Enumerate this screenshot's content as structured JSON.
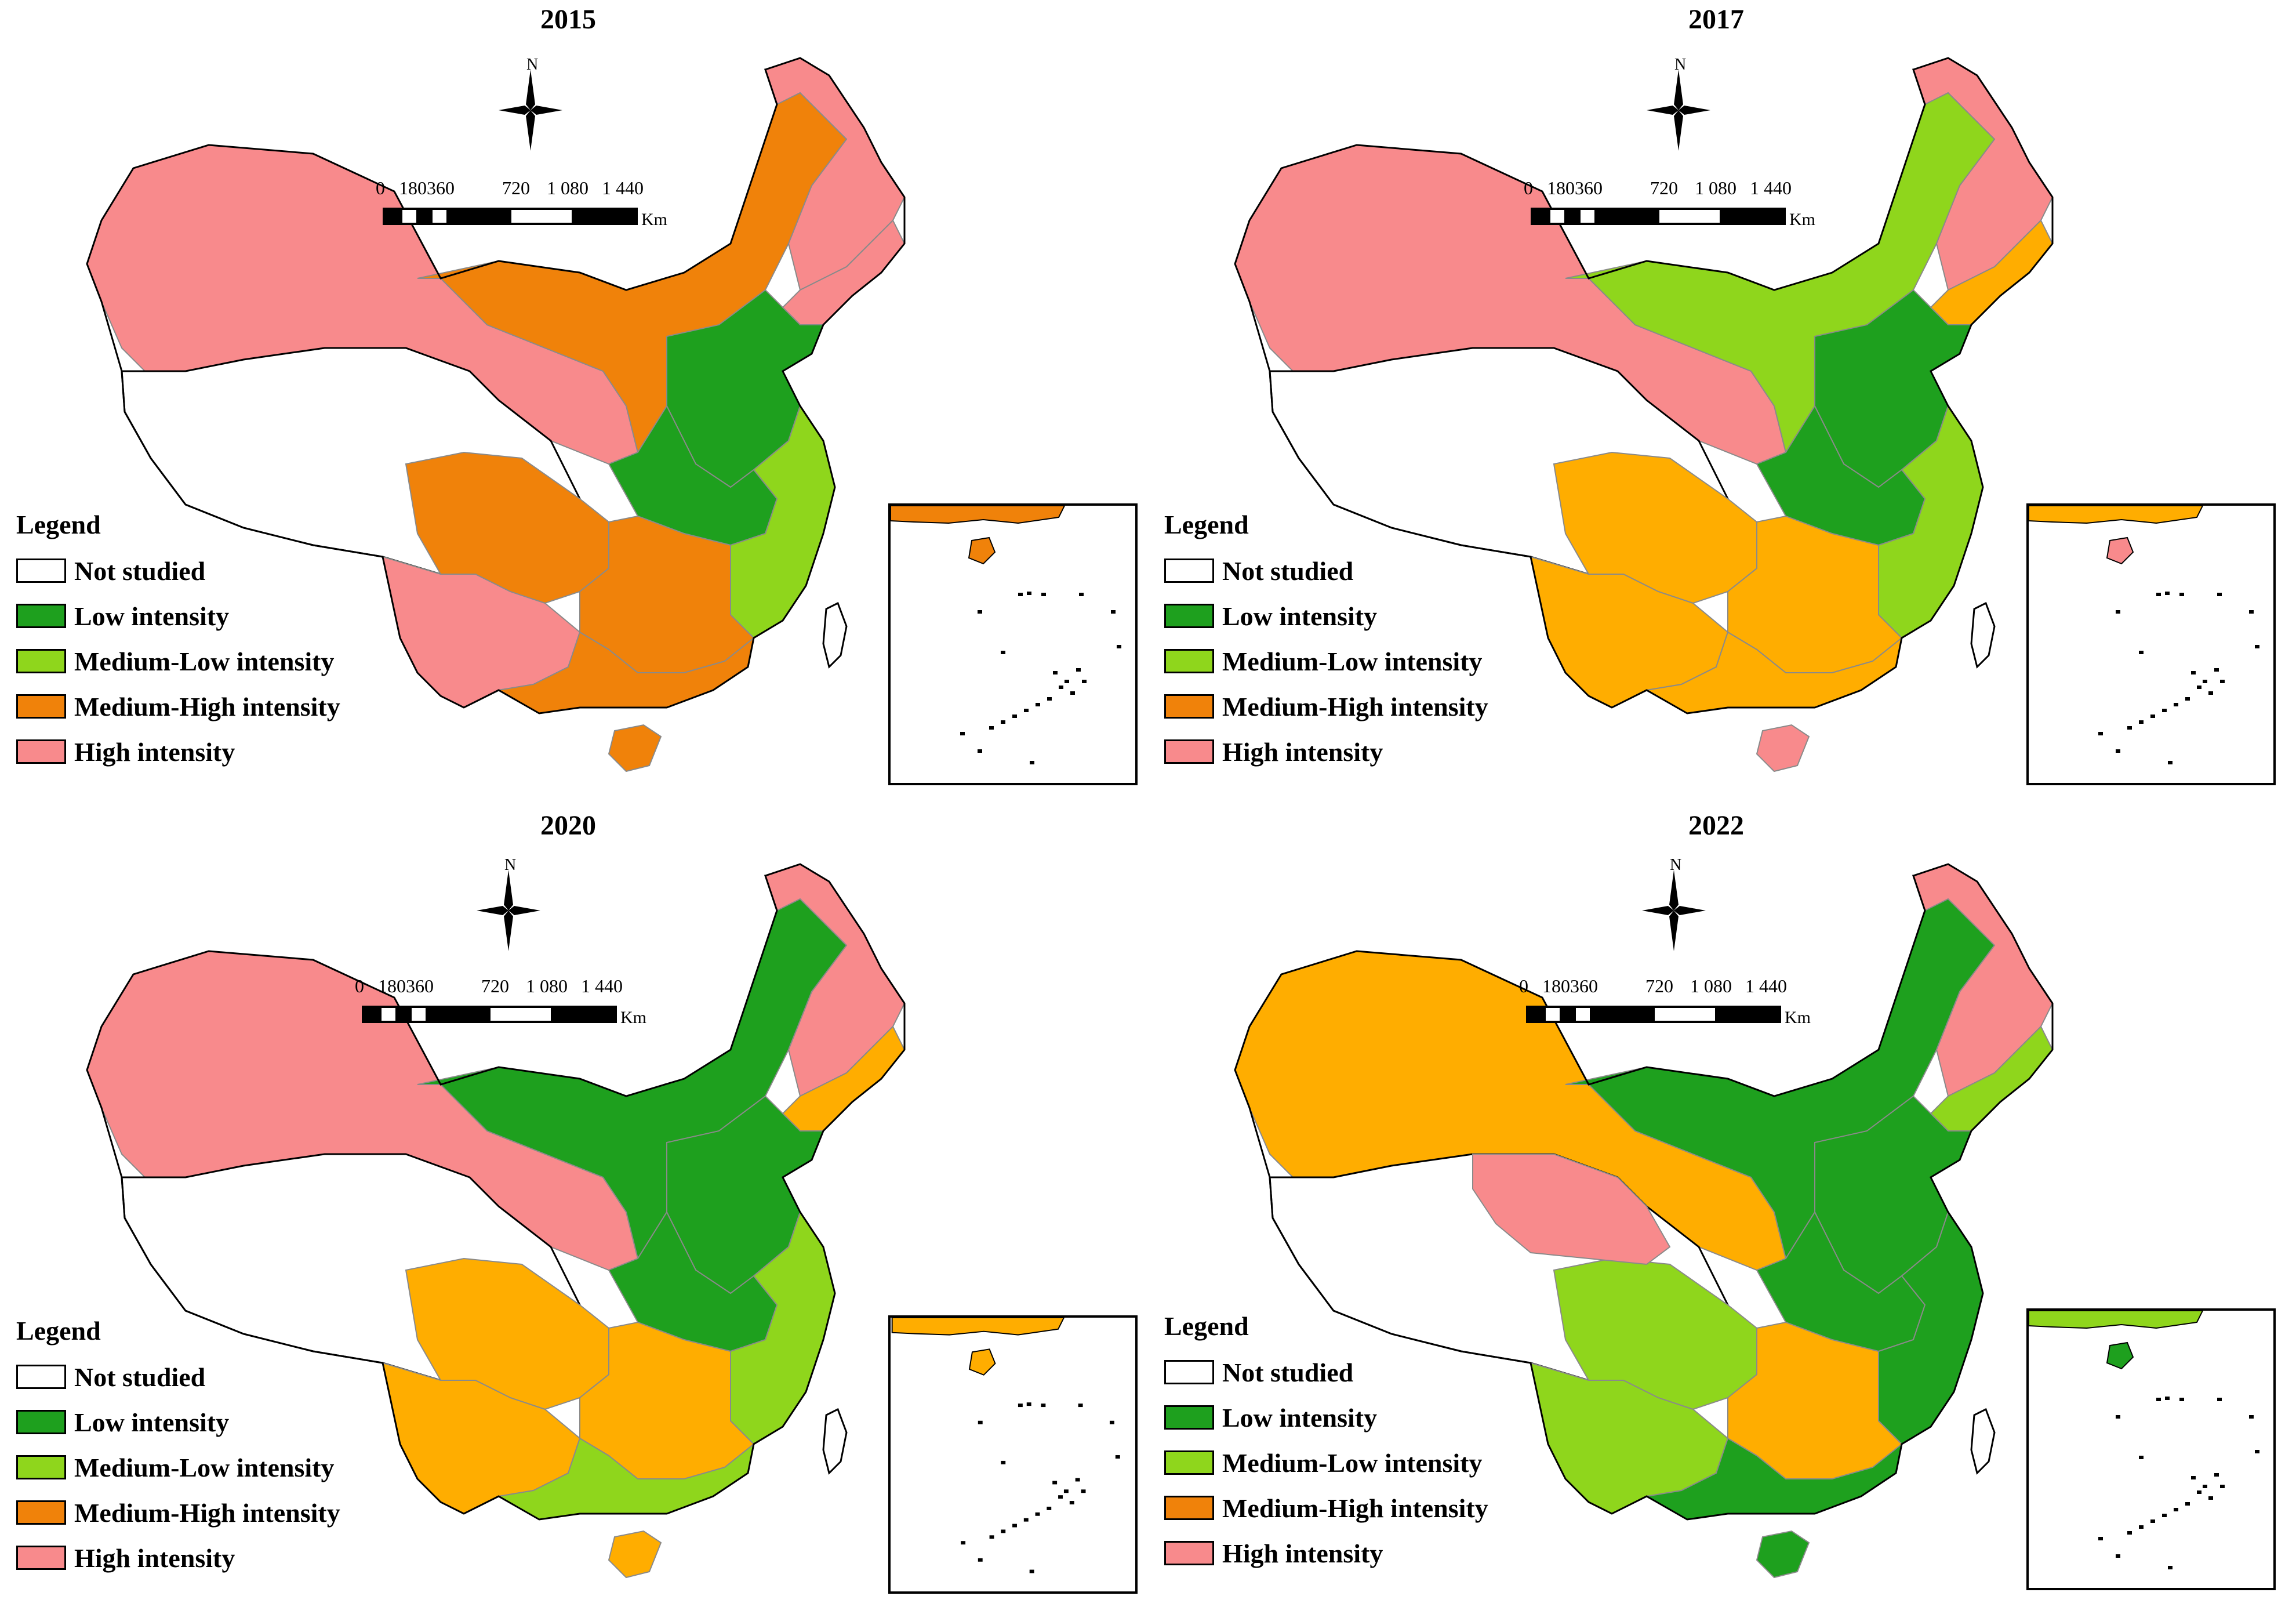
{
  "colors": {
    "not_studied": "#ffffff",
    "low": "#1ea01e",
    "medium_low": "#8fd61c",
    "medium_high_2015": "#f0820a",
    "medium_high": "#ffad00",
    "high": "#f88a8c",
    "outline": "#000000"
  },
  "north_label": "N",
  "scale": {
    "ticks": [
      "0",
      "180360",
      "720",
      "1 080",
      "1 440"
    ],
    "unit": "Km"
  },
  "legend": {
    "title": "Legend",
    "items": [
      {
        "label": "Not studied",
        "class": "not_studied"
      },
      {
        "label": "Low intensity",
        "class": "low"
      },
      {
        "label": "Medium-Low intensity",
        "class": "medium_low"
      },
      {
        "label": "Medium-High intensity",
        "class": "medium_high"
      },
      {
        "label": "High intensity",
        "class": "high"
      }
    ]
  },
  "panels": [
    {
      "year": "2015",
      "regions": {
        "west": "high",
        "tibet": "not_studied",
        "north": "medium_high",
        "northeast": "high",
        "northeast_mid": "high",
        "north_china": "low",
        "central": "low",
        "east": "medium_low",
        "southwest": "medium_high",
        "south_central": "medium_high",
        "south_west_tip": "high",
        "southeast": "medium_high",
        "hainan": "medium_high",
        "inset_top": "medium_high"
      }
    },
    {
      "year": "2017",
      "regions": {
        "west": "high",
        "tibet": "not_studied",
        "north": "medium_low",
        "northeast": "high",
        "northeast_mid": "medium_high",
        "north_china": "low",
        "central": "low",
        "east": "medium_low",
        "southwest": "medium_high",
        "south_central": "medium_high",
        "south_west_tip": "medium_high",
        "southeast": "medium_high",
        "hainan": "high",
        "inset_top": "medium_high"
      }
    },
    {
      "year": "2020",
      "regions": {
        "west": "high",
        "tibet": "not_studied",
        "north": "low",
        "northeast": "high",
        "northeast_mid": "medium_high",
        "north_china": "low",
        "central": "low",
        "east": "medium_low",
        "southwest": "medium_high",
        "south_central": "medium_high",
        "south_west_tip": "medium_high",
        "southeast": "medium_low",
        "hainan": "medium_high",
        "inset_top": "medium_high"
      }
    },
    {
      "year": "2022",
      "regions": {
        "west": "medium_high",
        "tibet": "not_studied",
        "north": "low",
        "northeast": "high",
        "northeast_mid": "medium_low",
        "north_china": "low",
        "central": "low",
        "east": "low",
        "southwest": "medium_low",
        "south_central": "medium_high",
        "south_west_tip": "medium_low",
        "southeast": "low",
        "hainan": "low",
        "inset_top": "medium_low",
        "qinghai": "high"
      }
    }
  ]
}
